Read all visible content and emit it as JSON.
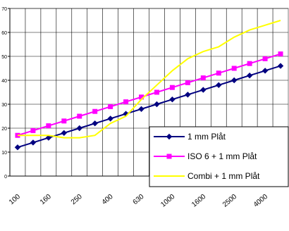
{
  "chart_data": {
    "type": "line",
    "categories": [
      "100",
      null,
      "160",
      null,
      "250",
      null,
      "400",
      null,
      "630",
      null,
      "1000",
      null,
      "1600",
      null,
      "2500",
      null,
      "4000",
      null
    ],
    "series": [
      {
        "name": "1 mm Plåt",
        "color": "#000080",
        "marker": "diamond",
        "values": [
          12,
          14,
          16,
          18,
          20,
          22,
          24,
          26,
          28,
          30,
          32,
          34,
          36,
          38,
          40,
          42,
          44,
          46
        ]
      },
      {
        "name": "ISO 6 + 1 mm Plåt",
        "color": "#ff00ff",
        "marker": "square",
        "values": [
          17,
          19,
          21,
          23,
          25,
          27,
          29,
          31,
          33,
          35,
          37,
          39,
          41,
          43,
          45,
          47,
          49,
          51
        ]
      },
      {
        "name": "Combi + 1 mm Plåt",
        "color": "#ffff00",
        "marker": "none",
        "values": [
          17,
          17,
          17,
          16,
          16,
          17,
          22,
          25,
          32,
          38,
          44,
          49,
          52,
          54,
          58,
          61,
          63,
          65
        ]
      }
    ],
    "ylim": [
      0,
      70
    ],
    "yticks": [
      0,
      10,
      20,
      30,
      40,
      50,
      60,
      70
    ],
    "grid": true,
    "legend": "lower right"
  }
}
